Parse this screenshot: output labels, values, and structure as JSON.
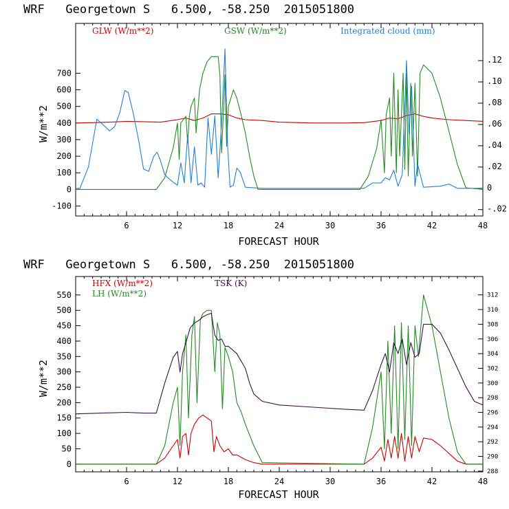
{
  "chart_data": [
    {
      "type": "line",
      "title": "WRF   Georgetown S   6.500, -58.250  2015051800",
      "xlabel": "FORECAST HOUR",
      "ylabel": "W/m**2",
      "xlim": [
        0,
        48
      ],
      "ylim": [
        -160,
        1000
      ],
      "y2lim": [
        -0.026,
        0.155
      ],
      "xticks": [
        6,
        12,
        18,
        24,
        30,
        36,
        42,
        48
      ],
      "yticks": [
        -100,
        0,
        100,
        200,
        300,
        400,
        500,
        600,
        700
      ],
      "y2ticks": [
        -0.02,
        0,
        0.02,
        0.04,
        0.06,
        0.08,
        0.1,
        0.12
      ],
      "y2tick_labels": [
        "-.02",
        "0",
        ".02",
        ".04",
        ".06",
        ".08",
        ".10",
        ".12"
      ],
      "series": [
        {
          "name": "GLW (W/m**2)",
          "color": "#cc0000",
          "axis": "left",
          "x": [
            0,
            2,
            4,
            6,
            8,
            10,
            12,
            13,
            14,
            15,
            16,
            17,
            18,
            19,
            20,
            22,
            24,
            28,
            32,
            34,
            36,
            37,
            38,
            39,
            40,
            41,
            42,
            44,
            46,
            48
          ],
          "y": [
            400,
            402,
            405,
            410,
            408,
            405,
            420,
            430,
            415,
            430,
            455,
            455,
            450,
            430,
            420,
            415,
            405,
            400,
            400,
            402,
            415,
            430,
            425,
            445,
            455,
            440,
            430,
            420,
            415,
            410
          ]
        },
        {
          "name": "GSW (W/m**2)",
          "color": "#228b22",
          "axis": "left",
          "x": [
            0,
            9.5,
            10.5,
            11.5,
            12,
            12.2,
            12.4,
            13,
            13.2,
            13.4,
            13.6,
            14,
            14.2,
            14.6,
            15,
            15.5,
            16,
            16.8,
            17,
            17.2,
            17.4,
            17.6,
            17.8,
            18,
            18.6,
            19,
            19.5,
            20,
            20.5,
            21,
            21.5,
            33.5,
            34.5,
            35.5,
            36,
            36.4,
            36.6,
            37,
            37.2,
            37.5,
            37.8,
            38,
            38.2,
            38.6,
            38.8,
            39,
            39.2,
            39.5,
            39.7,
            40,
            40.3,
            40.6,
            41,
            42,
            43,
            44,
            45,
            46,
            48
          ],
          "y": [
            0,
            0,
            70,
            250,
            400,
            180,
            400,
            440,
            280,
            440,
            500,
            550,
            340,
            600,
            700,
            770,
            800,
            800,
            690,
            220,
            440,
            690,
            260,
            500,
            600,
            550,
            450,
            340,
            200,
            80,
            0,
            0,
            80,
            250,
            420,
            100,
            450,
            550,
            200,
            700,
            100,
            600,
            200,
            700,
            120,
            700,
            80,
            640,
            200,
            640,
            80,
            700,
            750,
            700,
            550,
            350,
            150,
            10,
            0
          ]
        },
        {
          "name": "Integrated cloud (mm)",
          "color": "#1f7fd6",
          "axis": "right",
          "x": [
            0,
            0.5,
            1.5,
            2.5,
            3.2,
            4,
            4.6,
            5.2,
            5.8,
            6.2,
            6.8,
            7.4,
            8,
            8.6,
            9.2,
            9.6,
            10,
            10.5,
            11,
            11.6,
            12,
            12.4,
            12.8,
            13.2,
            13.6,
            14,
            14.4,
            14.8,
            15.2,
            15.6,
            16,
            16.4,
            16.8,
            17.2,
            17.6,
            17.9,
            18.2,
            18.6,
            19,
            19.4,
            20,
            22,
            30,
            34,
            35,
            36,
            36.5,
            37,
            37.5,
            38,
            38.5,
            39,
            39.3,
            39.6,
            40,
            40.3,
            41,
            43,
            44,
            45,
            48
          ],
          "y": [
            0,
            0,
            0.02,
            0.065,
            0.06,
            0.054,
            0.058,
            0.071,
            0.092,
            0.09,
            0.07,
            0.046,
            0.018,
            0.016,
            0.03,
            0.034,
            0.026,
            0.013,
            0.009,
            0.005,
            0.003,
            0.024,
            0.005,
            0.05,
            0.005,
            0.039,
            0.003,
            0.005,
            0.001,
            0.066,
            0.032,
            0.068,
            0.01,
            0.06,
            0.131,
            0.041,
            0.001,
            0.003,
            0.019,
            0.015,
            0.001,
            0,
            0,
            0,
            0.005,
            0.005,
            0.01,
            0.008,
            0.017,
            0.002,
            0.013,
            0.12,
            0.051,
            0.096,
            0.002,
            0.023,
            0.001,
            0.002,
            0.004,
            0,
            0
          ]
        }
      ]
    },
    {
      "type": "line",
      "title": "WRF   Georgetown S   6.500, -58.250  2015051800",
      "xlabel": "FORECAST HOUR",
      "ylabel": "W/m**2",
      "xlim": [
        0,
        48
      ],
      "ylim": [
        -25,
        610
      ],
      "y2lim": [
        287.9,
        314.5
      ],
      "xticks": [
        6,
        12,
        18,
        24,
        30,
        36,
        42,
        48
      ],
      "yticks": [
        0,
        50,
        100,
        150,
        200,
        250,
        300,
        350,
        400,
        450,
        500,
        550
      ],
      "y2ticks": [
        288,
        290,
        292,
        294,
        296,
        298,
        300,
        302,
        304,
        306,
        308,
        310,
        312
      ],
      "series": [
        {
          "name": "HFX (W/m**2)",
          "color": "#cc0000",
          "axis": "left",
          "x": [
            0,
            9.5,
            10.5,
            11.5,
            12,
            12.3,
            12.6,
            13,
            13.3,
            13.6,
            14,
            14.5,
            15,
            15.5,
            16,
            16.3,
            16.6,
            17,
            17.5,
            18,
            18.5,
            19,
            20,
            21,
            22,
            34,
            35,
            36,
            36.4,
            36.8,
            37.2,
            37.6,
            38,
            38.4,
            38.8,
            39.2,
            39.6,
            40,
            40.5,
            41,
            42,
            43,
            44,
            45,
            46,
            48
          ],
          "y": [
            0,
            0,
            20,
            60,
            80,
            20,
            90,
            100,
            30,
            100,
            130,
            150,
            160,
            150,
            140,
            40,
            90,
            60,
            40,
            50,
            30,
            30,
            15,
            5,
            0,
            0,
            20,
            55,
            10,
            80,
            20,
            90,
            20,
            100,
            10,
            90,
            20,
            90,
            40,
            85,
            80,
            60,
            35,
            10,
            0,
            0
          ]
        },
        {
          "name": "LH (W/m**2)",
          "color": "#228b22",
          "axis": "left",
          "x": [
            0,
            9.5,
            10.5,
            11.5,
            12,
            12.3,
            12.6,
            13,
            13.3,
            13.7,
            14,
            14.3,
            14.7,
            15,
            15.5,
            16,
            16.4,
            16.7,
            17,
            17.3,
            17.6,
            18,
            18.5,
            19,
            19.5,
            20,
            21,
            22,
            34,
            35,
            36,
            36.4,
            36.8,
            37.2,
            37.6,
            38,
            38.4,
            38.8,
            39.2,
            39.6,
            40,
            40.4,
            41,
            42,
            43,
            44,
            45,
            46,
            48
          ],
          "y": [
            0,
            0,
            60,
            200,
            250,
            60,
            300,
            420,
            150,
            420,
            480,
            200,
            470,
            490,
            500,
            500,
            300,
            460,
            420,
            180,
            380,
            350,
            300,
            200,
            170,
            130,
            60,
            5,
            0,
            120,
            300,
            50,
            400,
            100,
            450,
            50,
            460,
            80,
            450,
            60,
            450,
            350,
            550,
            450,
            300,
            150,
            40,
            0,
            0
          ]
        },
        {
          "name": "TSK (K)",
          "color": "#3d0b52",
          "axis": "right",
          "x": [
            0,
            3,
            6,
            8,
            9.5,
            10.5,
            11.5,
            12,
            12.3,
            12.6,
            13,
            13.5,
            14,
            14.5,
            15,
            15.5,
            16,
            16.4,
            16.8,
            17.2,
            17.6,
            18,
            18.5,
            19,
            19.5,
            20,
            20.5,
            21,
            22,
            24,
            28,
            32,
            34,
            35,
            36,
            36.5,
            37,
            37.5,
            38,
            38.5,
            39,
            39.5,
            40,
            40.5,
            41,
            42,
            43,
            44,
            45,
            46,
            47,
            48
          ],
          "y": [
            295.8,
            295.9,
            296,
            295.9,
            295.9,
            300,
            303.5,
            304.3,
            301.5,
            304,
            305.5,
            307.5,
            308.2,
            308.5,
            309,
            309.3,
            309.5,
            306.5,
            305.8,
            306,
            305,
            305,
            304.5,
            304,
            303,
            302,
            300,
            298.5,
            297.5,
            297,
            296.7,
            296.4,
            296.3,
            299,
            302.5,
            304,
            301.5,
            305.5,
            304,
            306,
            302.5,
            305.5,
            303.5,
            304,
            308,
            308,
            306.8,
            304.5,
            302,
            299.5,
            297.5,
            297
          ]
        }
      ]
    }
  ]
}
